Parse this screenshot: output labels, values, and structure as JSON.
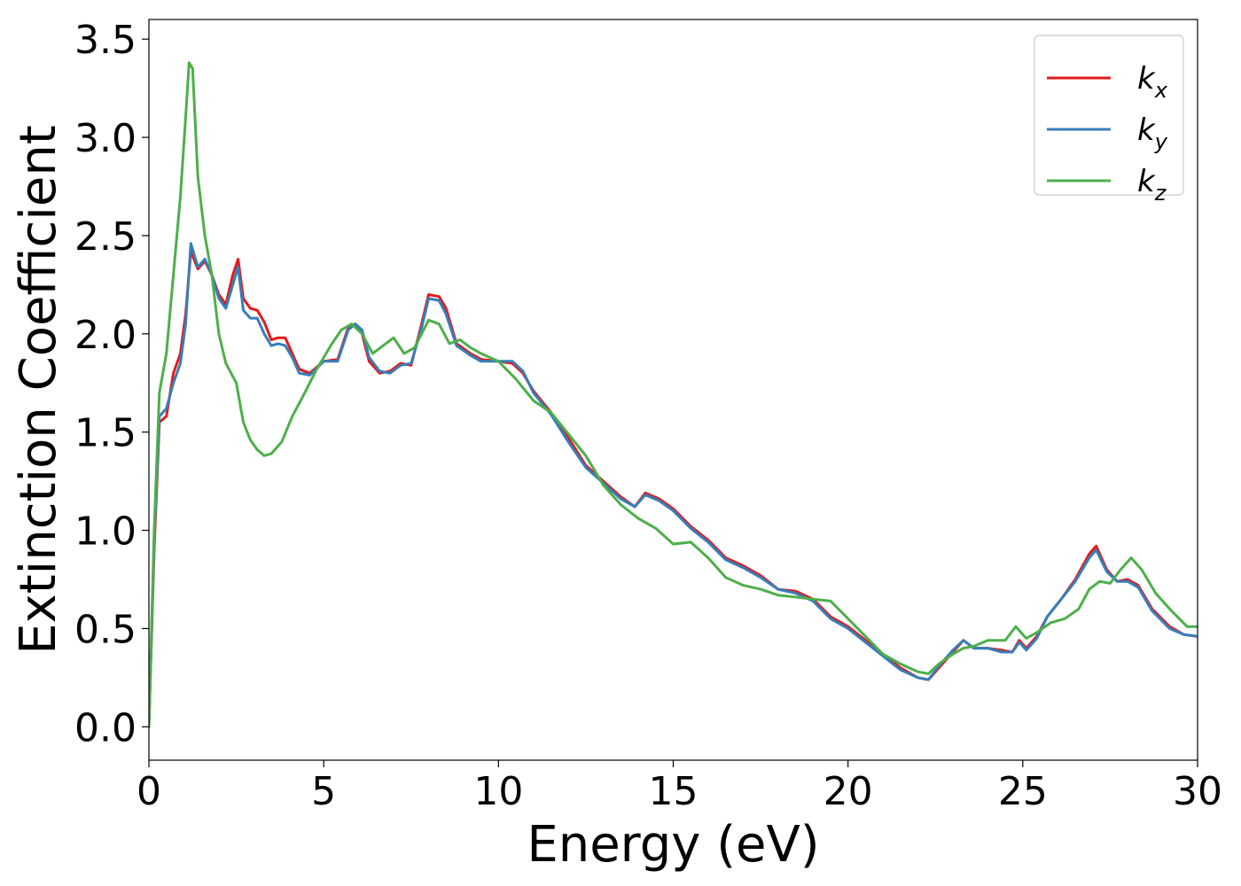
{
  "chart_data": {
    "type": "line",
    "title": "",
    "xlabel": "Energy (eV)",
    "ylabel": "Extinction Coefficient",
    "xlim": [
      0,
      30
    ],
    "ylim": [
      -0.17,
      3.6
    ],
    "xticks": [
      0,
      5,
      10,
      15,
      20,
      25,
      30
    ],
    "xtick_labels": [
      "0",
      "5",
      "10",
      "15",
      "20",
      "25",
      "30"
    ],
    "yticks": [
      0.0,
      0.5,
      1.0,
      1.5,
      2.0,
      2.5,
      3.0,
      3.5
    ],
    "ytick_labels": [
      "0.0",
      "0.5",
      "1.0",
      "1.5",
      "2.0",
      "2.5",
      "3.0",
      "3.5"
    ],
    "grid": false,
    "legend": {
      "position": "top-right"
    },
    "series": [
      {
        "name": "k_x",
        "legend_main": "k",
        "legend_sub": "x",
        "color": "#e41a1c",
        "points": [
          [
            0,
            0.0
          ],
          [
            0.15,
            0.9
          ],
          [
            0.3,
            1.55
          ],
          [
            0.5,
            1.58
          ],
          [
            0.7,
            1.8
          ],
          [
            0.9,
            1.9
          ],
          [
            1.05,
            2.1
          ],
          [
            1.2,
            2.42
          ],
          [
            1.4,
            2.33
          ],
          [
            1.6,
            2.37
          ],
          [
            1.8,
            2.3
          ],
          [
            2.0,
            2.2
          ],
          [
            2.2,
            2.15
          ],
          [
            2.4,
            2.3
          ],
          [
            2.55,
            2.38
          ],
          [
            2.7,
            2.18
          ],
          [
            2.9,
            2.13
          ],
          [
            3.1,
            2.12
          ],
          [
            3.3,
            2.06
          ],
          [
            3.5,
            1.97
          ],
          [
            3.7,
            1.98
          ],
          [
            3.9,
            1.98
          ],
          [
            4.1,
            1.9
          ],
          [
            4.3,
            1.82
          ],
          [
            4.6,
            1.8
          ],
          [
            5.0,
            1.86
          ],
          [
            5.4,
            1.87
          ],
          [
            5.7,
            2.03
          ],
          [
            5.9,
            2.05
          ],
          [
            6.1,
            2.0
          ],
          [
            6.3,
            1.86
          ],
          [
            6.6,
            1.8
          ],
          [
            6.9,
            1.81
          ],
          [
            7.2,
            1.85
          ],
          [
            7.5,
            1.84
          ],
          [
            7.8,
            2.05
          ],
          [
            8.0,
            2.2
          ],
          [
            8.3,
            2.19
          ],
          [
            8.5,
            2.13
          ],
          [
            8.8,
            1.95
          ],
          [
            9.2,
            1.9
          ],
          [
            9.5,
            1.87
          ],
          [
            10.0,
            1.86
          ],
          [
            10.4,
            1.85
          ],
          [
            10.7,
            1.8
          ],
          [
            11.0,
            1.71
          ],
          [
            11.5,
            1.6
          ],
          [
            12.0,
            1.47
          ],
          [
            12.5,
            1.33
          ],
          [
            13.0,
            1.25
          ],
          [
            13.5,
            1.17
          ],
          [
            13.9,
            1.12
          ],
          [
            14.2,
            1.19
          ],
          [
            14.6,
            1.16
          ],
          [
            15.0,
            1.11
          ],
          [
            15.5,
            1.02
          ],
          [
            16.0,
            0.95
          ],
          [
            16.5,
            0.86
          ],
          [
            17.0,
            0.82
          ],
          [
            17.5,
            0.77
          ],
          [
            18.0,
            0.7
          ],
          [
            18.5,
            0.69
          ],
          [
            19.0,
            0.65
          ],
          [
            19.5,
            0.56
          ],
          [
            20.0,
            0.51
          ],
          [
            20.5,
            0.44
          ],
          [
            21.0,
            0.37
          ],
          [
            21.5,
            0.3
          ],
          [
            22.0,
            0.25
          ],
          [
            22.3,
            0.24
          ],
          [
            22.6,
            0.3
          ],
          [
            23.0,
            0.38
          ],
          [
            23.3,
            0.44
          ],
          [
            23.6,
            0.4
          ],
          [
            24.0,
            0.4
          ],
          [
            24.4,
            0.39
          ],
          [
            24.7,
            0.38
          ],
          [
            24.9,
            0.44
          ],
          [
            25.1,
            0.4
          ],
          [
            25.4,
            0.46
          ],
          [
            25.7,
            0.56
          ],
          [
            26.1,
            0.65
          ],
          [
            26.5,
            0.75
          ],
          [
            26.9,
            0.88
          ],
          [
            27.1,
            0.92
          ],
          [
            27.4,
            0.8
          ],
          [
            27.7,
            0.74
          ],
          [
            28.0,
            0.75
          ],
          [
            28.3,
            0.72
          ],
          [
            28.7,
            0.6
          ],
          [
            29.2,
            0.51
          ],
          [
            29.6,
            0.47
          ],
          [
            30.0,
            0.46
          ]
        ]
      },
      {
        "name": "k_y",
        "legend_main": "k",
        "legend_sub": "y",
        "color": "#377eb8",
        "points": [
          [
            0,
            0.0
          ],
          [
            0.15,
            0.95
          ],
          [
            0.3,
            1.58
          ],
          [
            0.5,
            1.62
          ],
          [
            0.7,
            1.75
          ],
          [
            0.9,
            1.85
          ],
          [
            1.05,
            2.05
          ],
          [
            1.2,
            2.46
          ],
          [
            1.4,
            2.34
          ],
          [
            1.6,
            2.38
          ],
          [
            1.8,
            2.3
          ],
          [
            2.0,
            2.18
          ],
          [
            2.2,
            2.13
          ],
          [
            2.4,
            2.25
          ],
          [
            2.55,
            2.34
          ],
          [
            2.7,
            2.12
          ],
          [
            2.9,
            2.08
          ],
          [
            3.1,
            2.08
          ],
          [
            3.3,
            2.0
          ],
          [
            3.5,
            1.94
          ],
          [
            3.7,
            1.95
          ],
          [
            3.9,
            1.94
          ],
          [
            4.1,
            1.88
          ],
          [
            4.3,
            1.8
          ],
          [
            4.6,
            1.79
          ],
          [
            5.0,
            1.86
          ],
          [
            5.4,
            1.86
          ],
          [
            5.7,
            2.02
          ],
          [
            5.9,
            2.05
          ],
          [
            6.1,
            2.02
          ],
          [
            6.3,
            1.88
          ],
          [
            6.6,
            1.81
          ],
          [
            6.9,
            1.8
          ],
          [
            7.2,
            1.84
          ],
          [
            7.5,
            1.85
          ],
          [
            7.8,
            2.03
          ],
          [
            8.0,
            2.18
          ],
          [
            8.3,
            2.17
          ],
          [
            8.5,
            2.1
          ],
          [
            8.8,
            1.94
          ],
          [
            9.2,
            1.89
          ],
          [
            9.5,
            1.86
          ],
          [
            10.0,
            1.86
          ],
          [
            10.4,
            1.86
          ],
          [
            10.7,
            1.81
          ],
          [
            11.0,
            1.7
          ],
          [
            11.5,
            1.59
          ],
          [
            12.0,
            1.45
          ],
          [
            12.5,
            1.32
          ],
          [
            13.0,
            1.24
          ],
          [
            13.5,
            1.16
          ],
          [
            13.9,
            1.12
          ],
          [
            14.2,
            1.18
          ],
          [
            14.6,
            1.15
          ],
          [
            15.0,
            1.1
          ],
          [
            15.5,
            1.01
          ],
          [
            16.0,
            0.94
          ],
          [
            16.5,
            0.85
          ],
          [
            17.0,
            0.81
          ],
          [
            17.5,
            0.76
          ],
          [
            18.0,
            0.7
          ],
          [
            18.5,
            0.68
          ],
          [
            19.0,
            0.64
          ],
          [
            19.5,
            0.55
          ],
          [
            20.0,
            0.5
          ],
          [
            20.5,
            0.43
          ],
          [
            21.0,
            0.36
          ],
          [
            21.5,
            0.29
          ],
          [
            22.0,
            0.25
          ],
          [
            22.3,
            0.24
          ],
          [
            22.6,
            0.31
          ],
          [
            23.0,
            0.39
          ],
          [
            23.3,
            0.44
          ],
          [
            23.6,
            0.4
          ],
          [
            24.0,
            0.4
          ],
          [
            24.4,
            0.38
          ],
          [
            24.7,
            0.38
          ],
          [
            24.9,
            0.43
          ],
          [
            25.1,
            0.39
          ],
          [
            25.4,
            0.45
          ],
          [
            25.7,
            0.56
          ],
          [
            26.1,
            0.65
          ],
          [
            26.5,
            0.74
          ],
          [
            26.9,
            0.86
          ],
          [
            27.1,
            0.9
          ],
          [
            27.4,
            0.79
          ],
          [
            27.7,
            0.74
          ],
          [
            28.0,
            0.74
          ],
          [
            28.3,
            0.71
          ],
          [
            28.7,
            0.59
          ],
          [
            29.2,
            0.5
          ],
          [
            29.6,
            0.47
          ],
          [
            30.0,
            0.46
          ]
        ]
      },
      {
        "name": "k_z",
        "legend_main": "k",
        "legend_sub": "z",
        "color": "#4daf4a",
        "points": [
          [
            0,
            0.0
          ],
          [
            0.15,
            1.0
          ],
          [
            0.3,
            1.7
          ],
          [
            0.5,
            1.9
          ],
          [
            0.7,
            2.3
          ],
          [
            0.9,
            2.7
          ],
          [
            1.05,
            3.1
          ],
          [
            1.15,
            3.38
          ],
          [
            1.25,
            3.35
          ],
          [
            1.4,
            2.8
          ],
          [
            1.6,
            2.5
          ],
          [
            1.8,
            2.3
          ],
          [
            2.0,
            2.0
          ],
          [
            2.2,
            1.85
          ],
          [
            2.5,
            1.75
          ],
          [
            2.7,
            1.55
          ],
          [
            2.9,
            1.46
          ],
          [
            3.1,
            1.41
          ],
          [
            3.3,
            1.38
          ],
          [
            3.5,
            1.39
          ],
          [
            3.8,
            1.45
          ],
          [
            4.1,
            1.58
          ],
          [
            4.4,
            1.68
          ],
          [
            4.8,
            1.82
          ],
          [
            5.2,
            1.94
          ],
          [
            5.5,
            2.02
          ],
          [
            5.8,
            2.05
          ],
          [
            6.1,
            2.0
          ],
          [
            6.4,
            1.9
          ],
          [
            6.7,
            1.94
          ],
          [
            7.0,
            1.98
          ],
          [
            7.3,
            1.9
          ],
          [
            7.6,
            1.93
          ],
          [
            8.0,
            2.07
          ],
          [
            8.3,
            2.05
          ],
          [
            8.6,
            1.95
          ],
          [
            8.9,
            1.97
          ],
          [
            9.2,
            1.93
          ],
          [
            9.5,
            1.9
          ],
          [
            10.0,
            1.86
          ],
          [
            10.5,
            1.77
          ],
          [
            11.0,
            1.66
          ],
          [
            11.5,
            1.6
          ],
          [
            12.0,
            1.49
          ],
          [
            12.5,
            1.38
          ],
          [
            13.0,
            1.23
          ],
          [
            13.5,
            1.13
          ],
          [
            14.0,
            1.06
          ],
          [
            14.5,
            1.01
          ],
          [
            15.0,
            0.93
          ],
          [
            15.5,
            0.94
          ],
          [
            16.0,
            0.86
          ],
          [
            16.5,
            0.76
          ],
          [
            17.0,
            0.72
          ],
          [
            17.5,
            0.7
          ],
          [
            18.0,
            0.67
          ],
          [
            18.5,
            0.66
          ],
          [
            19.0,
            0.65
          ],
          [
            19.5,
            0.64
          ],
          [
            20.0,
            0.55
          ],
          [
            20.5,
            0.46
          ],
          [
            21.0,
            0.37
          ],
          [
            21.5,
            0.32
          ],
          [
            22.0,
            0.28
          ],
          [
            22.3,
            0.27
          ],
          [
            22.6,
            0.32
          ],
          [
            23.0,
            0.37
          ],
          [
            23.3,
            0.4
          ],
          [
            23.6,
            0.41
          ],
          [
            24.0,
            0.44
          ],
          [
            24.5,
            0.44
          ],
          [
            24.8,
            0.51
          ],
          [
            25.1,
            0.45
          ],
          [
            25.4,
            0.48
          ],
          [
            25.8,
            0.53
          ],
          [
            26.2,
            0.55
          ],
          [
            26.6,
            0.6
          ],
          [
            26.9,
            0.7
          ],
          [
            27.2,
            0.74
          ],
          [
            27.5,
            0.73
          ],
          [
            27.8,
            0.8
          ],
          [
            28.1,
            0.86
          ],
          [
            28.4,
            0.8
          ],
          [
            28.8,
            0.68
          ],
          [
            29.2,
            0.6
          ],
          [
            29.7,
            0.51
          ],
          [
            30.0,
            0.51
          ]
        ]
      }
    ]
  }
}
